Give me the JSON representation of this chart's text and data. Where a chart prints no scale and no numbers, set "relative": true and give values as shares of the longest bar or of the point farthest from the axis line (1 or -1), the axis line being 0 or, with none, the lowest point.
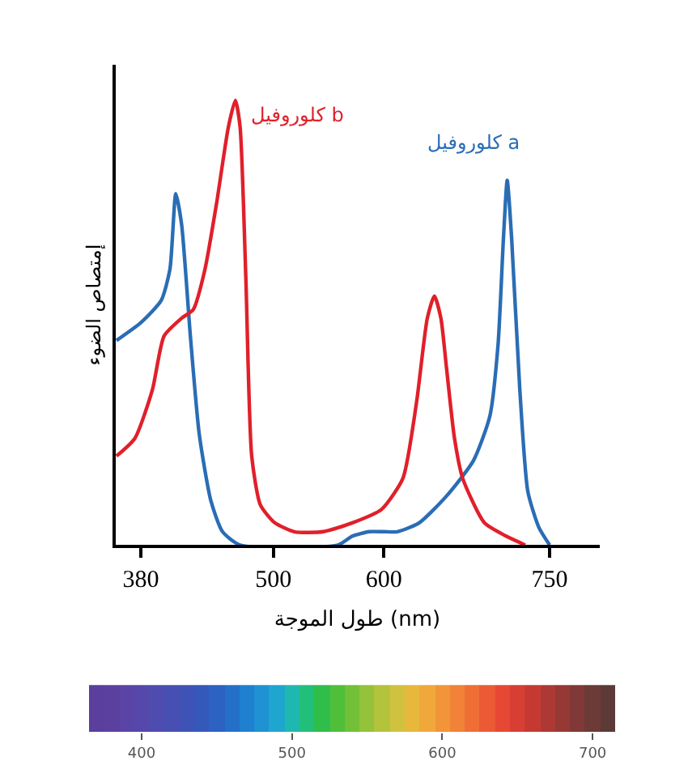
{
  "chart_data": [
    {
      "type": "line",
      "relative": true,
      "xlabel": "طول الموجة (nm)",
      "ylabel": "إمتصاص الضوء",
      "xlim": [
        357,
        795
      ],
      "xticks": [
        380,
        500,
        600,
        750
      ],
      "legend": false,
      "marker": "none",
      "line_style": "solid",
      "series": [
        {
          "name": "كلوروفيل a",
          "color": "#2a6db5",
          "x": [
            358,
            380,
            398.5,
            406.4,
            411.7,
            417,
            424.9,
            432.9,
            443.4,
            454,
            469.9,
            558.3,
            571.5,
            586.8,
            600,
            612.3,
            632,
            656.6,
            681.1,
            695.9,
            703.3,
            708.2,
            711.6,
            715.6,
            723,
            730.3,
            740.2,
            750
          ],
          "values": [
            0.46,
            0.5,
            0.55,
            0.62,
            0.79,
            0.72,
            0.47,
            0.25,
            0.1,
            0.03,
            0,
            0,
            0.02,
            0.03,
            0.03,
            0.03,
            0.05,
            0.11,
            0.19,
            0.29,
            0.45,
            0.69,
            0.82,
            0.69,
            0.35,
            0.12,
            0.04,
            0
          ]
        },
        {
          "name": "كلوروفيل b",
          "color": "#e0202a",
          "x": [
            358,
            374.7,
            390.6,
            401.1,
            417,
            427.6,
            438.1,
            448.7,
            459.3,
            465.6,
            469.9,
            475.1,
            480.4,
            488.3,
            501.3,
            518.9,
            545.2,
            571.5,
            597.8,
            617.2,
            629.5,
            639.3,
            645.7,
            651.6,
            656.6,
            663.9,
            671.3,
            691,
            710.7,
            727.9
          ],
          "values": [
            0.2,
            0.24,
            0.35,
            0.47,
            0.51,
            0.53,
            0.62,
            0.77,
            0.94,
            1,
            0.94,
            0.6,
            0.2,
            0.09,
            0.05,
            0.03,
            0.03,
            0.05,
            0.08,
            0.15,
            0.32,
            0.51,
            0.56,
            0.51,
            0.4,
            0.24,
            0.15,
            0.05,
            0.02,
            0
          ]
        }
      ]
    },
    {
      "type": "bar",
      "relative": true,
      "xlim": [
        365,
        715
      ],
      "xticks": [
        400,
        500,
        600,
        700
      ],
      "x": [
        370,
        380,
        390,
        400,
        410,
        420,
        430,
        440,
        450,
        460,
        470,
        480,
        490,
        500,
        510,
        520,
        530,
        540,
        550,
        560,
        570,
        580,
        590,
        600,
        610,
        620,
        630,
        640,
        650,
        660,
        670,
        680,
        690,
        700,
        710
      ],
      "values": [
        1,
        1,
        1,
        1,
        1,
        1,
        1,
        1,
        1,
        1,
        1,
        1,
        1,
        1,
        1,
        1,
        1,
        1,
        1,
        1,
        1,
        1,
        1,
        1,
        1,
        1,
        1,
        1,
        1,
        1,
        1,
        1,
        1,
        1,
        1
      ],
      "colors": [
        "#5a3f9c",
        "#5b40a0",
        "#5a44a6",
        "#5548aa",
        "#4e4cae",
        "#474fb2",
        "#3f53b6",
        "#3558bb",
        "#2c62c2",
        "#2470c9",
        "#1f80d0",
        "#1e92d2",
        "#1ea6cf",
        "#1fb8b0",
        "#22bf7a",
        "#2fbe4a",
        "#4fbf3a",
        "#72c038",
        "#94c23a",
        "#b4c33c",
        "#d0c23e",
        "#e8b83c",
        "#f0a83a",
        "#f29538",
        "#f18237",
        "#ef6e36",
        "#ec5a35",
        "#e64834",
        "#d83e33",
        "#c43a33",
        "#ad3934",
        "#963935",
        "#803936",
        "#6c3a37",
        "#5b3a38"
      ]
    }
  ]
}
